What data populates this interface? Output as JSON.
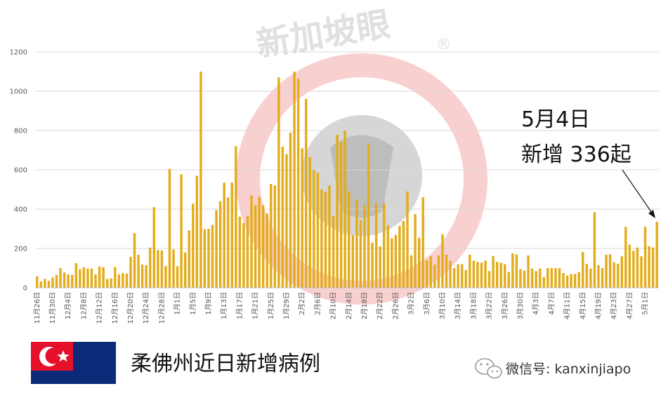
{
  "chart_data": {
    "type": "bar",
    "title": "",
    "xlabel": "",
    "ylabel": "",
    "ylim": [
      0,
      1200
    ],
    "yticks": [
      0,
      200,
      400,
      600,
      800,
      1000,
      1200
    ],
    "grid": true,
    "bar_color": "#e3ac1a",
    "start_date": "2020-11-26",
    "tick_labels": [
      "11月26日",
      "11月30日",
      "12月4日",
      "12月8日",
      "12月12日",
      "12月16日",
      "12月20日",
      "12月24日",
      "12月28日",
      "1月1日",
      "1月5日",
      "1月9日",
      "1月13日",
      "1月17日",
      "1月21日",
      "1月25日",
      "1月29日",
      "2月2日",
      "2月6日",
      "2月10日",
      "2月14日",
      "2月18日",
      "2月22日",
      "2月26日",
      "3月2日",
      "3月6日",
      "3月10日",
      "3月14日",
      "3月18日",
      "3月22日",
      "3月26日",
      "3月30日",
      "4月3日",
      "4月7日",
      "4月11日",
      "4月15日",
      "4月19日",
      "4月23日",
      "4月27日",
      "5月1日"
    ],
    "values": [
      58,
      32,
      45,
      35,
      52,
      65,
      100,
      78,
      68,
      65,
      125,
      95,
      105,
      98,
      98,
      68,
      108,
      105,
      45,
      48,
      105,
      68,
      75,
      72,
      158,
      278,
      168,
      118,
      115,
      205,
      410,
      192,
      190,
      110,
      605,
      195,
      110,
      578,
      180,
      292,
      428,
      570,
      1100,
      298,
      300,
      320,
      395,
      440,
      535,
      460,
      535,
      720,
      362,
      330,
      365,
      470,
      420,
      462,
      420,
      378,
      528,
      520,
      1070,
      718,
      680,
      790,
      1100,
      1065,
      710,
      962,
      665,
      600,
      585,
      500,
      488,
      520,
      365,
      778,
      740,
      800,
      490,
      268,
      450,
      345,
      420,
      730,
      230,
      430,
      210,
      430,
      318,
      252,
      270,
      315,
      340,
      490,
      165,
      375,
      255,
      460,
      140,
      160,
      118,
      165,
      272,
      168,
      138,
      100,
      120,
      120,
      90,
      168,
      138,
      132,
      128,
      138,
      85,
      162,
      132,
      128,
      120,
      80,
      175,
      170,
      95,
      88,
      165,
      98,
      85,
      98,
      55,
      100,
      100,
      100,
      100,
      75,
      62,
      70,
      70,
      80,
      182,
      122,
      98,
      385,
      115,
      100,
      168,
      170,
      130,
      122,
      160,
      310,
      220,
      188,
      205,
      160,
      310,
      212,
      205,
      336
    ]
  },
  "annotation": {
    "line1": "5月4日",
    "line2": "新增 336起"
  },
  "caption": "柔佛州近日新增病例",
  "watermark": {
    "text": "新加坡眼",
    "mark": "®"
  },
  "wechat": {
    "label": "微信号: kanxinjiapo"
  },
  "flag": {
    "field_color": "#0b2a78",
    "canton_color": "#e5102a",
    "emblem_color": "#ffffff"
  }
}
